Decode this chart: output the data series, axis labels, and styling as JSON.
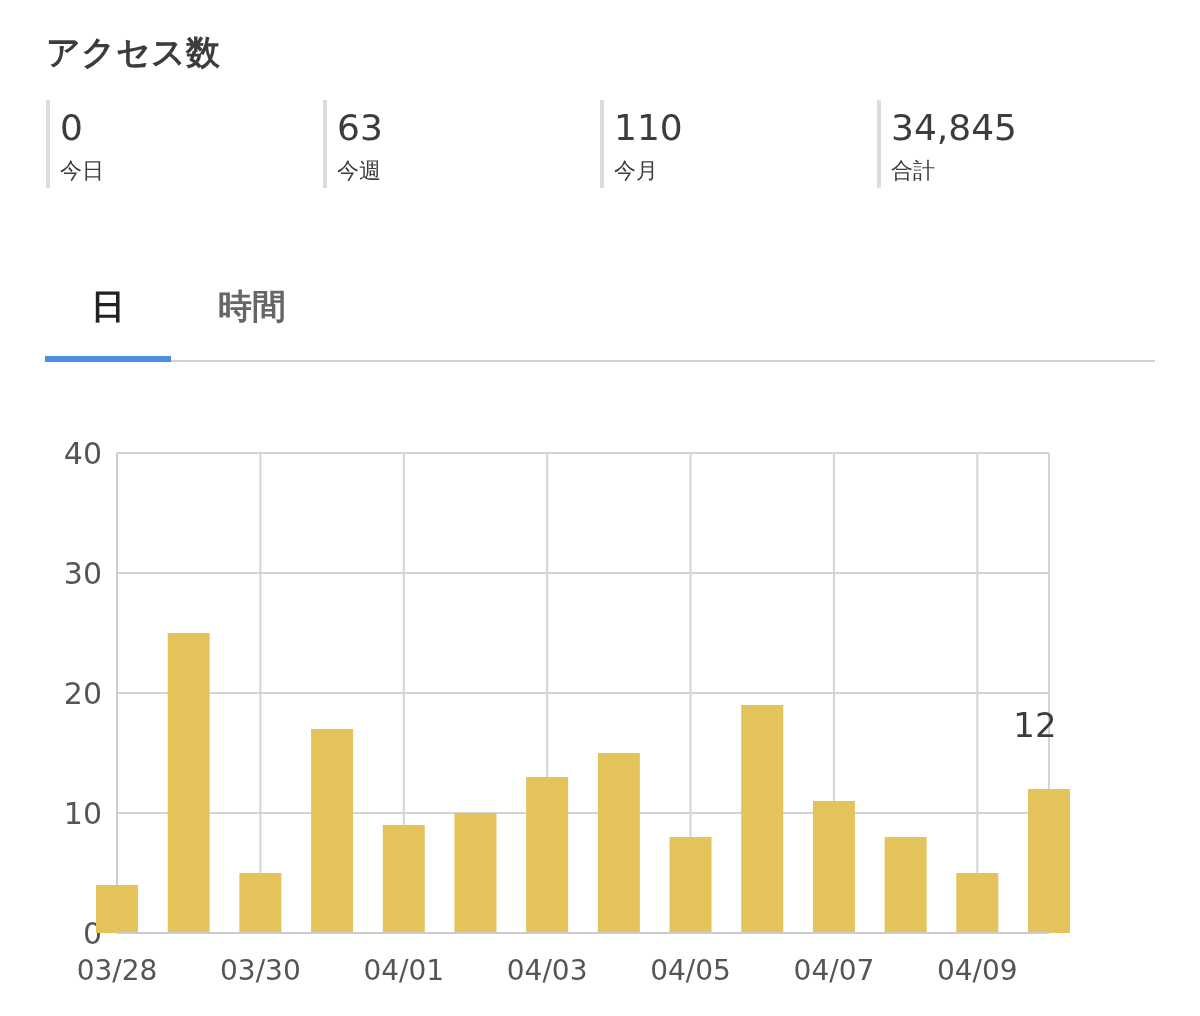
{
  "chart_data": [
    {
      "type": "other",
      "title": "アクセス数",
      "categories": [
        "今日",
        "今週",
        "今月",
        "合計"
      ],
      "value_labels": [
        "0",
        "63",
        "110",
        "34,845"
      ]
    },
    {
      "type": "bar",
      "annotations": [
        "日",
        "時間"
      ],
      "categories": [
        "03/28",
        null,
        "03/30",
        null,
        "04/01",
        null,
        "04/03",
        null,
        "04/05",
        null,
        "04/07",
        null,
        "04/09",
        null
      ],
      "values": [
        4,
        25,
        5,
        17,
        9,
        10,
        13,
        15,
        8,
        19,
        11,
        8,
        5,
        12
      ],
      "value_labels": [
        null,
        null,
        null,
        null,
        null,
        null,
        null,
        null,
        null,
        null,
        null,
        null,
        null,
        "12"
      ],
      "color": "#e4c45a",
      "ylim": [
        0,
        40
      ],
      "yticks": [
        0,
        10,
        20,
        30,
        40
      ],
      "grid": true
    }
  ]
}
